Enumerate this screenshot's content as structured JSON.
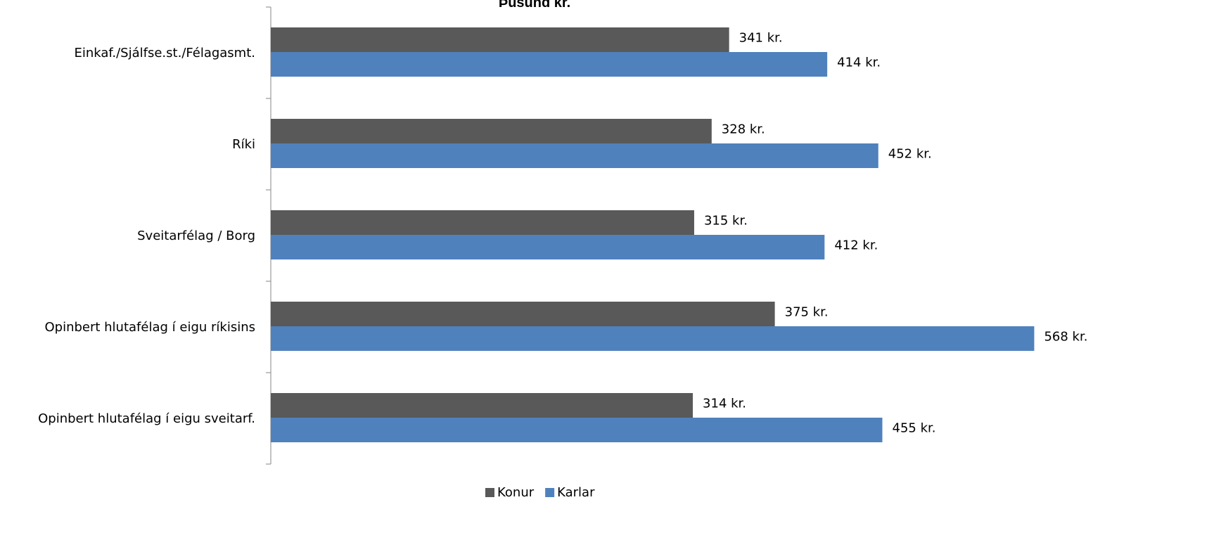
{
  "chart_data": {
    "type": "bar",
    "orientation": "horizontal",
    "title": "Þúsund kr.",
    "categories": [
      "Einkaf./Sjálfse.st./Félagasmt.",
      "Ríki",
      "Sveitarfélag / Borg",
      "Opinbert hlutafélag í eigu ríkisins",
      "Opinbert hlutafélag í eigu sveitarf."
    ],
    "series": [
      {
        "name": "Konur",
        "color": "#595959",
        "values": [
          341,
          328,
          315,
          375,
          314
        ],
        "labels": [
          "341 kr.",
          "328 kr.",
          "315 kr.",
          "375 kr.",
          "314 kr."
        ]
      },
      {
        "name": "Karlar",
        "color": "#4f81bd",
        "values": [
          414,
          452,
          412,
          568,
          455
        ],
        "labels": [
          "414 kr.",
          "452 kr.",
          "412 kr.",
          "568 kr.",
          "455 kr."
        ]
      }
    ],
    "xlim": [
      0,
      600
    ],
    "grid": false,
    "legend": "bottom-center"
  }
}
